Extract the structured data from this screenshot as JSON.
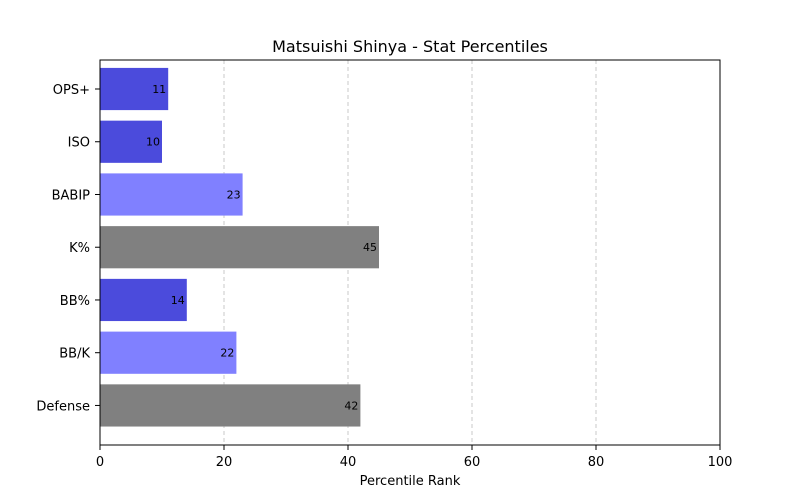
{
  "chart_data": {
    "type": "bar",
    "orientation": "horizontal",
    "title": "Matsuishi Shinya - Stat Percentiles",
    "xlabel": "Percentile Rank",
    "ylabel": "",
    "xlim": [
      0,
      100
    ],
    "x_ticks": [
      0,
      20,
      40,
      60,
      80,
      100
    ],
    "grid": "x-axis dashed",
    "categories": [
      "OPS+",
      "ISO",
      "BABIP",
      "K%",
      "BB%",
      "BB/K",
      "Defense"
    ],
    "values": [
      11,
      10,
      23,
      45,
      14,
      22,
      42
    ],
    "data_labels": [
      "11",
      "10",
      "23",
      "45",
      "14",
      "22",
      "42"
    ],
    "bar_colors": [
      "#4b4bdc",
      "#4b4bdc",
      "#8080ff",
      "#808080",
      "#4b4bdc",
      "#8080ff",
      "#808080"
    ]
  }
}
